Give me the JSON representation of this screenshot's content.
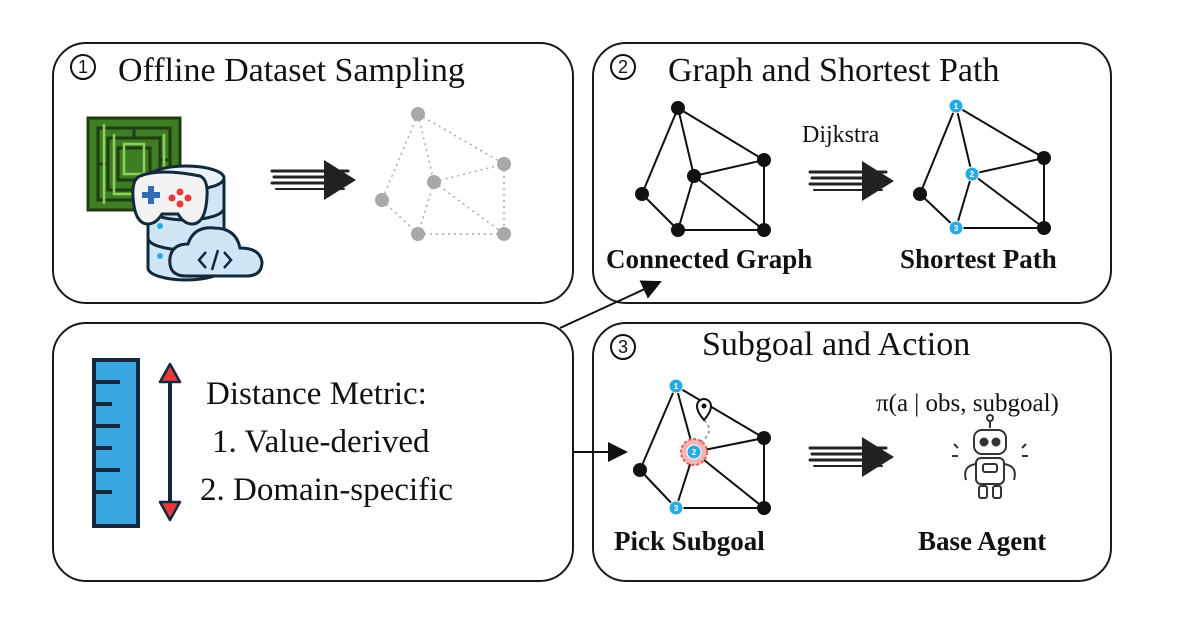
{
  "panels": {
    "sampling": {
      "number": "1",
      "title": "Offline Dataset Sampling"
    },
    "graph": {
      "number": "2",
      "title": "Graph and Shortest Path",
      "arrow_label": "Dijkstra",
      "left_label": "Connected Graph",
      "right_label": "Shortest Path"
    },
    "subgoal": {
      "number": "3",
      "title": "Subgoal and Action",
      "policy": "π(a | obs, subgoal)",
      "left_label": "Pick Subgoal",
      "right_label": "Base Agent"
    },
    "metric": {
      "heading": "Distance Metric:",
      "items": [
        "1. Value-derived",
        "2. Domain-specific"
      ]
    }
  },
  "path_markers": [
    "1",
    "2",
    "3"
  ],
  "icons": [
    "maze-icon",
    "gamepad-icon",
    "database-icon",
    "cloud-code-icon",
    "ruler-icon",
    "double-arrow-icon",
    "robot-icon",
    "location-pin-icon"
  ],
  "colors": {
    "accent_blue": "#29abe2",
    "maze_green": "#3f7d24",
    "ruler_blue": "#3aa7e0",
    "arrow_red": "#e8393a",
    "highlight_red": "#e85c5c"
  }
}
